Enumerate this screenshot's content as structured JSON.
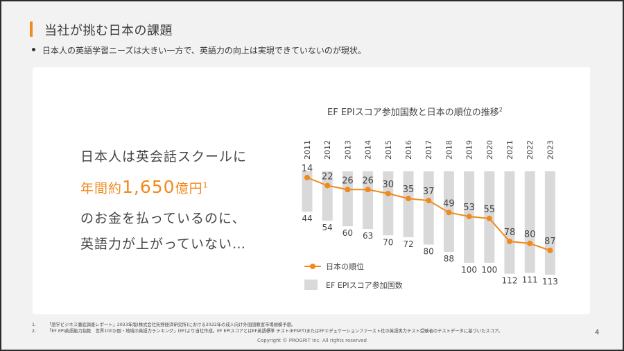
{
  "slide": {
    "title": "当社が挑む日本の課題",
    "bullet": "日本人の英語学習ニーズは大きい一方で、英語力の向上は実現できていないのが現状。",
    "message": {
      "line1": "日本人は英会話スクールに",
      "line2_prefix": "年間約",
      "line2_amount": "1,650",
      "line2_suffix": "億円",
      "line2_sup": "1",
      "line3": "のお金を払っているのに、",
      "line4": "英語力が上がっていない…"
    },
    "footnotes": [
      {
        "num": "1.",
        "text": "「語学ビジネス徹底調査レポート」2023年版(株式会社矢野経済研究所)における2022年の成人向け外国語教室市場規模予想。"
      },
      {
        "num": "2.",
        "text": "「EF EPI英語能力指数　世界100か国・地域の英語力ランキング」(EF)より当社作成。EF EPIスコアとはEF英語標準 テスト(EFSET)またはEFエデュケーションファースト社の英語実力テスト受験者のテストデータに基づいたスコア。"
      }
    ],
    "copyright": "Copyright © PROGRIT Inc. All rights reserved",
    "page_number": "4"
  },
  "chart_data": {
    "type": "bar+line",
    "title": "EF EPIスコア参加国数と日本の順位の推移",
    "title_sup": "2",
    "categories": [
      "2011",
      "2012",
      "2013",
      "2014",
      "2015",
      "2016",
      "2017",
      "2018",
      "2019",
      "2020",
      "2021",
      "2022",
      "2023"
    ],
    "series": [
      {
        "name": "EF EPIスコア参加国数",
        "type": "bar",
        "values": [
          44,
          54,
          60,
          63,
          70,
          72,
          80,
          88,
          100,
          100,
          112,
          111,
          113
        ]
      },
      {
        "name": "日本の順位",
        "type": "line",
        "values": [
          14,
          22,
          26,
          26,
          30,
          35,
          37,
          49,
          53,
          55,
          78,
          80,
          87
        ]
      }
    ],
    "legend_position": "bottom-left",
    "colors": {
      "bar": "#d9d9d9",
      "line": "#f08a1c",
      "accent": "#f08a1c"
    }
  }
}
